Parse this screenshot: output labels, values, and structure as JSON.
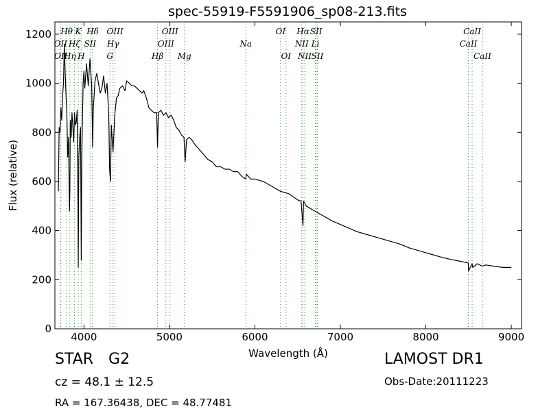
{
  "chart_data": {
    "type": "line",
    "title": "spec-55919-F5591906_sp08-213.fits",
    "xlabel": "Wavelength (Å)",
    "ylabel": "Flux (relative)",
    "xlim": [
      3660,
      9120
    ],
    "ylim": [
      0,
      1250
    ],
    "xticks": [
      4000,
      5000,
      6000,
      7000,
      8000,
      9000
    ],
    "yticks": [
      0,
      200,
      400,
      600,
      800,
      1000,
      1200
    ],
    "grid": false,
    "line_color": "#000000",
    "marker_color": "#2ca02c",
    "series": [
      {
        "x": [
          3700,
          3710,
          3720,
          3730,
          3740,
          3750,
          3760,
          3770,
          3780,
          3790,
          3800,
          3810,
          3820,
          3830,
          3835,
          3840,
          3850,
          3860,
          3870,
          3880,
          3890,
          3900,
          3910,
          3920,
          3930,
          3933,
          3940,
          3950,
          3960,
          3968,
          3975,
          3990,
          4000,
          4010,
          4030,
          4050,
          4070,
          4090,
          4102,
          4110,
          4130,
          4150,
          4170,
          4190,
          4210,
          4230,
          4250,
          4270,
          4290,
          4300,
          4310,
          4320,
          4340,
          4360,
          4380,
          4400,
          4420,
          4450,
          4480,
          4500,
          4530,
          4560,
          4590,
          4620,
          4650,
          4680,
          4700,
          4730,
          4760,
          4790,
          4820,
          4850,
          4861,
          4870,
          4900,
          4930,
          4960,
          4990,
          5020,
          5050,
          5080,
          5110,
          5140,
          5170,
          5184,
          5200,
          5230,
          5260,
          5300,
          5350,
          5400,
          5450,
          5500,
          5550,
          5600,
          5650,
          5700,
          5750,
          5800,
          5850,
          5893,
          5900,
          5950,
          6000,
          6100,
          6200,
          6300,
          6400,
          6500,
          6540,
          6563,
          6570,
          6600,
          6700,
          6800,
          6900,
          7000,
          7100,
          7200,
          7300,
          7400,
          7500,
          7600,
          7700,
          7800,
          7900,
          8000,
          8100,
          8200,
          8300,
          8400,
          8498,
          8500,
          8542,
          8550,
          8600,
          8662,
          8700,
          8800,
          8900,
          9000
        ],
        "y": [
          560,
          820,
          800,
          900,
          850,
          950,
          1000,
          1160,
          1050,
          950,
          880,
          700,
          780,
          480,
          560,
          850,
          780,
          880,
          820,
          760,
          880,
          830,
          840,
          890,
          500,
          250,
          700,
          780,
          820,
          280,
          700,
          1000,
          1050,
          980,
          1080,
          990,
          1100,
          990,
          740,
          900,
          1010,
          1040,
          1000,
          960,
          980,
          1030,
          960,
          1000,
          870,
          650,
          600,
          830,
          720,
          870,
          940,
          950,
          980,
          990,
          970,
          1010,
          1000,
          990,
          990,
          980,
          970,
          960,
          970,
          940,
          900,
          890,
          880,
          880,
          740,
          880,
          890,
          870,
          880,
          860,
          870,
          850,
          820,
          810,
          790,
          780,
          680,
          770,
          780,
          770,
          750,
          730,
          710,
          690,
          680,
          660,
          660,
          650,
          650,
          640,
          640,
          620,
          610,
          630,
          610,
          610,
          600,
          580,
          560,
          550,
          525,
          520,
          420,
          520,
          500,
          480,
          460,
          440,
          425,
          410,
          395,
          385,
          375,
          365,
          355,
          345,
          330,
          320,
          310,
          300,
          290,
          282,
          275,
          268,
          236,
          265,
          250,
          265,
          255,
          260,
          255,
          250,
          250
        ]
      }
    ],
    "lines": [
      {
        "name": "OII",
        "x": 3727,
        "label_row": 2
      },
      {
        "name": "OII",
        "x": 3730,
        "label_row": 3
      },
      {
        "name": "Hθ",
        "x": 3798,
        "label_row": 1
      },
      {
        "name": "Hη",
        "x": 3835,
        "label_row": 3
      },
      {
        "name": "Hζ",
        "x": 3889,
        "label_row": 2
      },
      {
        "name": "K",
        "x": 3933,
        "label_row": 1
      },
      {
        "name": "H",
        "x": 3968,
        "label_row": 3
      },
      {
        "name": "SII",
        "x": 4072,
        "label_row": 2
      },
      {
        "name": "Hδ",
        "x": 4102,
        "label_row": 1
      },
      {
        "name": "G",
        "x": 4304,
        "label_row": 3
      },
      {
        "name": "Hγ",
        "x": 4340,
        "label_row": 2
      },
      {
        "name": "OIII",
        "x": 4363,
        "label_row": 1
      },
      {
        "name": "Hβ",
        "x": 4861,
        "label_row": 3
      },
      {
        "name": "OIII",
        "x": 4959,
        "label_row": 2
      },
      {
        "name": "OIII",
        "x": 5007,
        "label_row": 1
      },
      {
        "name": "Mg",
        "x": 5175,
        "label_row": 3
      },
      {
        "name": "Na",
        "x": 5894,
        "label_row": 2
      },
      {
        "name": "OI",
        "x": 6300,
        "label_row": 1
      },
      {
        "name": "OI",
        "x": 6364,
        "label_row": 3
      },
      {
        "name": "NII",
        "x": 6548,
        "label_row": 2
      },
      {
        "name": "Hα",
        "x": 6563,
        "label_row": 1
      },
      {
        "name": "NII",
        "x": 6583,
        "label_row": 3
      },
      {
        "name": "SII",
        "x": 6716,
        "label_row": 1
      },
      {
        "name": "Li",
        "x": 6708,
        "label_row": 2
      },
      {
        "name": "SII",
        "x": 6731,
        "label_row": 3
      },
      {
        "name": "CaII",
        "x": 8498,
        "label_row": 2
      },
      {
        "name": "CaII",
        "x": 8542,
        "label_row": 1
      },
      {
        "name": "CaII",
        "x": 8662,
        "label_row": 3
      }
    ]
  },
  "info": {
    "class": "STAR",
    "subclass": "G2",
    "survey": "LAMOST DR1",
    "redshift": "cz = 48.1 ± 12.5",
    "obs_date": "Obs-Date:20111223",
    "coords": "RA = 167.36438, DEC = 48.77481"
  }
}
